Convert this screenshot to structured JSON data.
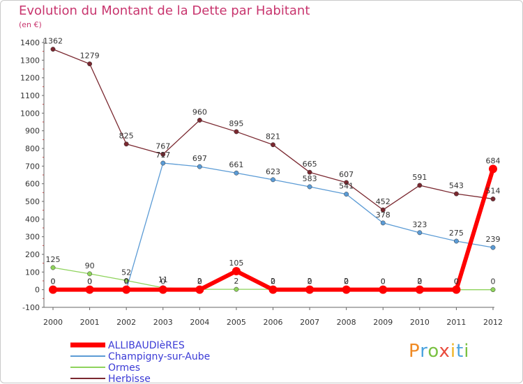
{
  "chart_data": {
    "type": "line",
    "title": "Evolution du Montant de la Dette par Habitant",
    "subtitle": "(en €)",
    "x": [
      2000,
      2001,
      2002,
      2003,
      2004,
      2005,
      2006,
      2007,
      2008,
      2009,
      2010,
      2011,
      2012
    ],
    "ylim": [
      -100,
      1400
    ],
    "yticks": [
      -100,
      0,
      100,
      200,
      300,
      400,
      500,
      600,
      700,
      800,
      900,
      1000,
      1100,
      1200,
      1300,
      1400
    ],
    "grid": false,
    "legend_position": "bottom-left",
    "series": [
      {
        "name": "ALLIBAUDIèRES",
        "color": "#ff0000",
        "values": [
          0,
          0,
          0,
          0,
          0,
          105,
          0,
          0,
          0,
          0,
          0,
          0,
          684
        ]
      },
      {
        "name": "Champigny-sur-Aube",
        "color": "#5b9bd5",
        "values": [
          0,
          0,
          0,
          717,
          697,
          661,
          623,
          583,
          541,
          378,
          323,
          275,
          239
        ]
      },
      {
        "name": "Ormes",
        "color": "#8ed35b",
        "values": [
          125,
          90,
          52,
          11,
          2,
          2,
          2,
          2,
          2,
          0,
          2,
          0,
          0
        ]
      },
      {
        "name": "Herbisse",
        "color": "#7a2830",
        "values": [
          1362,
          1279,
          825,
          767,
          960,
          895,
          821,
          665,
          607,
          452,
          591,
          543,
          514
        ]
      }
    ]
  },
  "logo": {
    "text": "Proxiti"
  }
}
